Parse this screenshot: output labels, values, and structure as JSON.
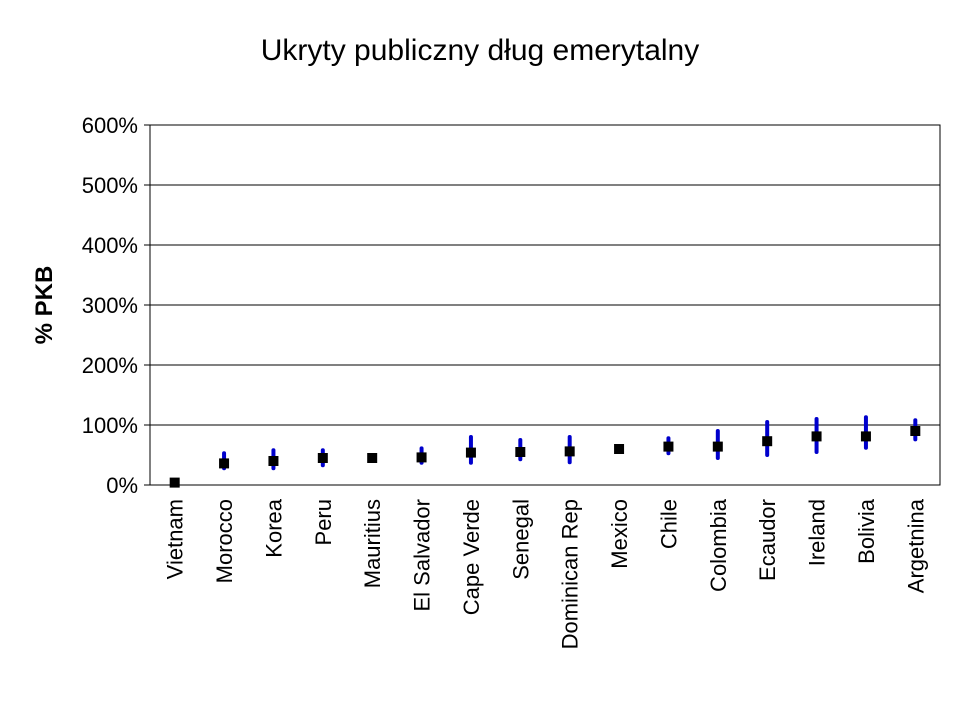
{
  "chart_data": {
    "type": "scatter",
    "title": "Ukryty publiczny dług emerytalny",
    "xlabel": "",
    "ylabel": "% PKB",
    "ylim": [
      0,
      600
    ],
    "yticks": [
      0,
      100,
      200,
      300,
      400,
      500,
      600
    ],
    "ytick_labels": [
      "0%",
      "100%",
      "200%",
      "300%",
      "400%",
      "500%",
      "600%"
    ],
    "grid": true,
    "categories": [
      "Vietnam",
      "Morocco",
      "Korea",
      "Peru",
      "Mauritius",
      "El Salvador",
      "Cape Verde",
      "Senegal",
      "Dominican Rep",
      "Mexico",
      "Chile",
      "Colombia",
      "Ecaudor",
      "Ireland",
      "Bolivia",
      "Argetnina"
    ],
    "series": [
      {
        "name": "point estimate",
        "marker": "square",
        "color": "#000000",
        "values": [
          4,
          36,
          40,
          45,
          45,
          46,
          54,
          55,
          56,
          60,
          64,
          64,
          73,
          81,
          81,
          90
        ]
      },
      {
        "name": "range low",
        "color": "#0000CC",
        "values": [
          null,
          28,
          28,
          33,
          null,
          37,
          37,
          43,
          38,
          57,
          53,
          45,
          50,
          55,
          62,
          76
        ]
      },
      {
        "name": "range high",
        "color": "#0000CC",
        "values": [
          null,
          53,
          58,
          58,
          null,
          61,
          80,
          75,
          80,
          65,
          78,
          90,
          105,
          110,
          113,
          108
        ]
      }
    ]
  }
}
